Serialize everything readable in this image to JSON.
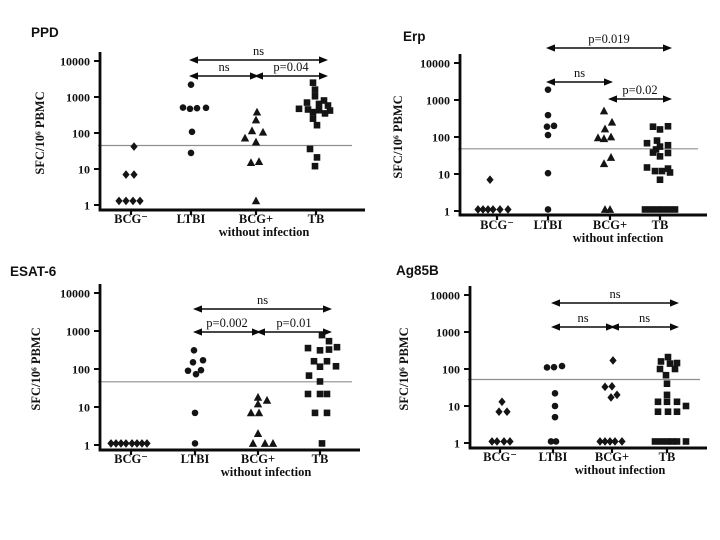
{
  "figure": {
    "background": "#ffffff",
    "marker_color": "#141414",
    "axis_color": "#0a0a0a",
    "refline_color": "#8f8f8f",
    "ylabel": "SFC/10⁶ PBMC"
  },
  "chart_data": [
    {
      "id": "ppd",
      "type": "scatter",
      "title": "PPD",
      "ylabel": "SFC/10⁶ PBMC",
      "yscale": "log",
      "ylim": [
        1,
        10000
      ],
      "yticks": [
        10000,
        1000,
        100,
        10,
        1
      ],
      "refline": 45,
      "categories": [
        {
          "label": "BCG⁻"
        },
        {
          "label": "LTBI"
        },
        {
          "label": "BCG+",
          "sublabel": "without infection"
        },
        {
          "label": "TB"
        }
      ],
      "series": [
        {
          "name": "BCG⁻",
          "marker": "diamond",
          "points": [
            [
              3,
              42
            ],
            [
              -5,
              7
            ],
            [
              3,
              7
            ],
            [
              -12,
              1.3
            ],
            [
              -5,
              1.3
            ],
            [
              2,
              1.3
            ],
            [
              9,
              1.3
            ]
          ]
        },
        {
          "name": "LTBI",
          "marker": "circle",
          "points": [
            [
              0,
              2200
            ],
            [
              -8,
              510
            ],
            [
              -1,
              470
            ],
            [
              6,
              490
            ],
            [
              15,
              500
            ],
            [
              1,
              108
            ],
            [
              0,
              28
            ]
          ]
        },
        {
          "name": "BCG+ without infection",
          "marker": "triangle",
          "points": [
            [
              1,
              380
            ],
            [
              0,
              230
            ],
            [
              -4,
              115
            ],
            [
              7,
              105
            ],
            [
              -11,
              72
            ],
            [
              0,
              56
            ],
            [
              -5,
              15
            ],
            [
              3,
              16
            ],
            [
              0,
              1.3
            ]
          ]
        },
        {
          "name": "TB",
          "marker": "square",
          "points": [
            [
              -3,
              2500
            ],
            [
              -1,
              1600
            ],
            [
              -1,
              1050
            ],
            [
              8,
              800
            ],
            [
              -9,
              700
            ],
            [
              3,
              640
            ],
            [
              12,
              580
            ],
            [
              -17,
              470
            ],
            [
              -8,
              450
            ],
            [
              3,
              430
            ],
            [
              14,
              420
            ],
            [
              -3,
              380
            ],
            [
              9,
              350
            ],
            [
              -3,
              250
            ],
            [
              1,
              165
            ],
            [
              -6,
              36
            ],
            [
              1,
              21
            ],
            [
              -1,
              12
            ]
          ]
        }
      ],
      "annotations": [
        {
          "label": "ns",
          "from": 1,
          "to": 3,
          "row": 0
        },
        {
          "label": "ns",
          "from": 1,
          "to": 2,
          "row": 1
        },
        {
          "label": "p=0.04",
          "from": 2,
          "to": 3,
          "row": 1
        }
      ]
    },
    {
      "id": "erp",
      "type": "scatter",
      "title": "Erp",
      "ylabel": "SFC/10⁶ PBMC",
      "yscale": "log",
      "ylim": [
        1,
        10000
      ],
      "yticks": [
        10000,
        1000,
        100,
        10,
        1
      ],
      "refline": 48,
      "categories": [
        {
          "label": "BCG⁻"
        },
        {
          "label": "LTBI"
        },
        {
          "label": "BCG+",
          "sublabel": "without infection"
        },
        {
          "label": "TB"
        }
      ],
      "series": [
        {
          "name": "BCG⁻",
          "marker": "diamond",
          "points": [
            [
              -7,
              7
            ],
            [
              -19,
              1.1
            ],
            [
              -14,
              1.1
            ],
            [
              -9,
              1.1
            ],
            [
              -4,
              1.1
            ],
            [
              3,
              1.1
            ],
            [
              11,
              1.1
            ]
          ]
        },
        {
          "name": "LTBI",
          "marker": "circle",
          "points": [
            [
              0,
              1900
            ],
            [
              0,
              390
            ],
            [
              -1,
              190
            ],
            [
              6,
              200
            ],
            [
              0,
              113
            ],
            [
              0,
              10.5
            ],
            [
              0,
              1.1
            ]
          ]
        },
        {
          "name": "BCG+ without infection",
          "marker": "triangle",
          "points": [
            [
              -6,
              505
            ],
            [
              2,
              250
            ],
            [
              -5,
              165
            ],
            [
              -12,
              95
            ],
            [
              -6,
              90
            ],
            [
              1,
              100
            ],
            [
              1,
              28
            ],
            [
              -6,
              19
            ],
            [
              -5,
              1.1
            ],
            [
              0,
              1.1
            ]
          ]
        },
        {
          "name": "TB",
          "marker": "square",
          "points": [
            [
              -7,
              190
            ],
            [
              8,
              195
            ],
            [
              0,
              160
            ],
            [
              -3,
              80
            ],
            [
              -13,
              68
            ],
            [
              8,
              60
            ],
            [
              0,
              55
            ],
            [
              -4,
              46
            ],
            [
              -7,
              38
            ],
            [
              8,
              37
            ],
            [
              0,
              30
            ],
            [
              -13,
              15
            ],
            [
              8,
              14
            ],
            [
              -5,
              12
            ],
            [
              2,
              12
            ],
            [
              10,
              11
            ],
            [
              0,
              7
            ],
            [
              -15,
              1.1
            ],
            [
              -9,
              1.1
            ],
            [
              -3,
              1.1
            ],
            [
              3,
              1.1
            ],
            [
              9,
              1.1
            ],
            [
              15,
              1.1
            ]
          ]
        }
      ],
      "annotations": [
        {
          "label": "p=0.019",
          "from": 1,
          "to": 3,
          "row": 0
        },
        {
          "label": "ns",
          "from": 1,
          "to": 2,
          "row": 1
        },
        {
          "label": "p=0.02",
          "from": 2,
          "to": 3,
          "row": 2
        }
      ]
    },
    {
      "id": "esat6",
      "type": "scatter",
      "title": "ESAT-6",
      "ylabel": "SFC/10⁶ PBMC",
      "yscale": "log",
      "ylim": [
        1,
        10000
      ],
      "yticks": [
        10000,
        1000,
        100,
        10,
        1
      ],
      "refline": 46,
      "categories": [
        {
          "label": "BCG⁻"
        },
        {
          "label": "LTBI"
        },
        {
          "label": "BCG+",
          "sublabel": "without infection"
        },
        {
          "label": "TB"
        }
      ],
      "series": [
        {
          "name": "BCG⁻",
          "marker": "diamond",
          "points": [
            [
              -20,
              1.1
            ],
            [
              -15,
              1.1
            ],
            [
              -10,
              1.1
            ],
            [
              -5,
              1.1
            ],
            [
              1,
              1.1
            ],
            [
              6,
              1.1
            ],
            [
              11,
              1.1
            ],
            [
              16,
              1.1
            ]
          ]
        },
        {
          "name": "LTBI",
          "marker": "circle",
          "points": [
            [
              -1,
              310
            ],
            [
              8,
              170
            ],
            [
              -2,
              150
            ],
            [
              6,
              93
            ],
            [
              -7,
              90
            ],
            [
              1,
              73
            ],
            [
              0,
              7
            ],
            [
              0,
              1.1
            ]
          ]
        },
        {
          "name": "BCG+ without infection",
          "marker": "triangle",
          "points": [
            [
              0,
              18
            ],
            [
              9,
              15
            ],
            [
              0,
              12
            ],
            [
              -7,
              7
            ],
            [
              1,
              7
            ],
            [
              0,
              2
            ],
            [
              -5,
              1.1
            ],
            [
              7,
              1.1
            ],
            [
              15,
              1.1
            ]
          ]
        },
        {
          "name": "TB",
          "marker": "square",
          "points": [
            [
              2,
              780
            ],
            [
              9,
              540
            ],
            [
              17,
              375
            ],
            [
              -12,
              355
            ],
            [
              9,
              325
            ],
            [
              0,
              310
            ],
            [
              -6,
              160
            ],
            [
              7,
              160
            ],
            [
              16,
              118
            ],
            [
              0,
              115
            ],
            [
              -11,
              67
            ],
            [
              0,
              47
            ],
            [
              -12,
              22
            ],
            [
              0,
              22
            ],
            [
              7,
              22
            ],
            [
              -5,
              7
            ],
            [
              7,
              7
            ],
            [
              2,
              1.1
            ]
          ]
        }
      ],
      "annotations": [
        {
          "label": "ns",
          "from": 1,
          "to": 3,
          "row": 0
        },
        {
          "label": "p=0.002",
          "from": 1,
          "to": 2,
          "row": 1
        },
        {
          "label": "p=0.01",
          "from": 2,
          "to": 3,
          "row": 1
        }
      ]
    },
    {
      "id": "ag85b",
      "type": "scatter",
      "title": "Ag85B",
      "ylabel": "SFC/10⁶ PBMC",
      "yscale": "log",
      "ylim": [
        1,
        10000
      ],
      "yticks": [
        10000,
        1000,
        100,
        10,
        1
      ],
      "refline": 52,
      "categories": [
        {
          "label": "BCG⁻"
        },
        {
          "label": "LTBI"
        },
        {
          "label": "BCG+",
          "sublabel": "without infection"
        },
        {
          "label": "TB"
        }
      ],
      "series": [
        {
          "name": "BCG⁻",
          "marker": "diamond",
          "points": [
            [
              2,
              13
            ],
            [
              -1,
              7
            ],
            [
              7,
              7
            ],
            [
              -8,
              1.1
            ],
            [
              -3,
              1.1
            ],
            [
              4,
              1.1
            ],
            [
              10,
              1.1
            ]
          ]
        },
        {
          "name": "LTBI",
          "marker": "circle",
          "points": [
            [
              -6,
              110
            ],
            [
              1,
              112
            ],
            [
              9,
              120
            ],
            [
              2,
              22
            ],
            [
              2,
              10
            ],
            [
              2,
              5
            ],
            [
              -2,
              1.1
            ],
            [
              3,
              1.1
            ]
          ]
        },
        {
          "name": "BCG+ without infection",
          "marker": "diamond",
          "points": [
            [
              1,
              170
            ],
            [
              -7,
              33
            ],
            [
              0,
              34
            ],
            [
              -1,
              17
            ],
            [
              5,
              20
            ],
            [
              -12,
              1.1
            ],
            [
              -7,
              1.1
            ],
            [
              -2,
              1.1
            ],
            [
              3,
              1.1
            ],
            [
              10,
              1.1
            ]
          ]
        },
        {
          "name": "TB",
          "marker": "square",
          "points": [
            [
              1,
              210
            ],
            [
              -6,
              160
            ],
            [
              3,
              140
            ],
            [
              10,
              145
            ],
            [
              -7,
              100
            ],
            [
              8,
              100
            ],
            [
              -1,
              68
            ],
            [
              0,
              40
            ],
            [
              0,
              20
            ],
            [
              -9,
              13
            ],
            [
              0,
              13
            ],
            [
              10,
              13
            ],
            [
              19,
              10
            ],
            [
              -9,
              7
            ],
            [
              1,
              7
            ],
            [
              10,
              7
            ],
            [
              -12,
              1.1
            ],
            [
              -6,
              1.1
            ],
            [
              0,
              1.1
            ],
            [
              5,
              1.1
            ],
            [
              10,
              1.1
            ],
            [
              19,
              1.1
            ]
          ]
        }
      ],
      "annotations": [
        {
          "label": "ns",
          "from": 1,
          "to": 3,
          "row": 0
        },
        {
          "label": "ns",
          "from": 1,
          "to": 2,
          "row": 1
        },
        {
          "label": "ns",
          "from": 2,
          "to": 3,
          "row": 1
        }
      ]
    }
  ]
}
